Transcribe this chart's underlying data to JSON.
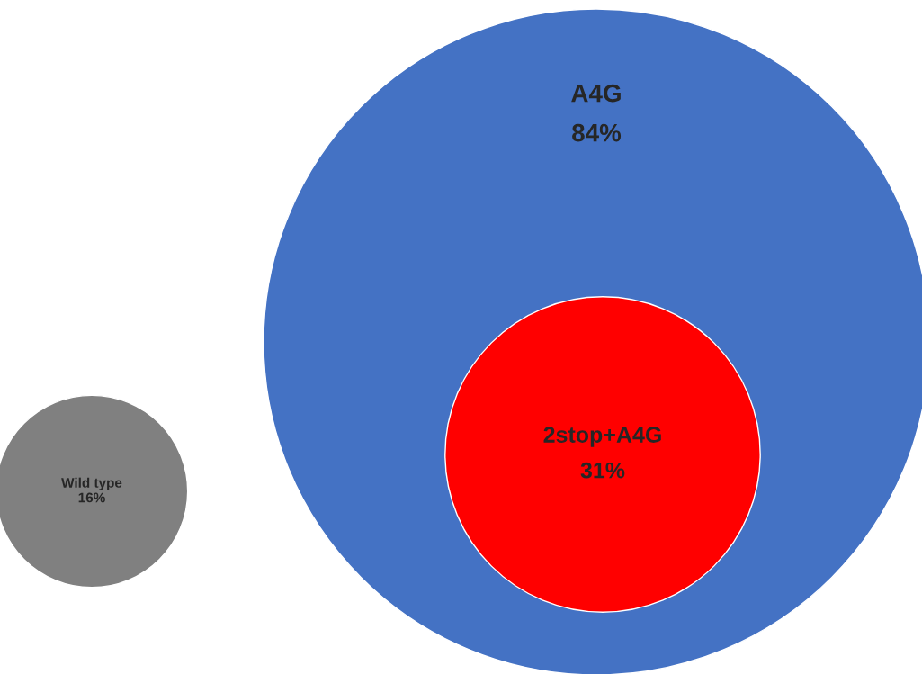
{
  "chart_data": {
    "type": "other",
    "categories": [
      "A4G",
      "2stop+A4G",
      "Wild type"
    ],
    "values": [
      84,
      31,
      16
    ],
    "value_labels": [
      "84%",
      "31%",
      "16%"
    ],
    "colors": [
      "#4472c4",
      "#ff0000",
      "#808080"
    ]
  }
}
